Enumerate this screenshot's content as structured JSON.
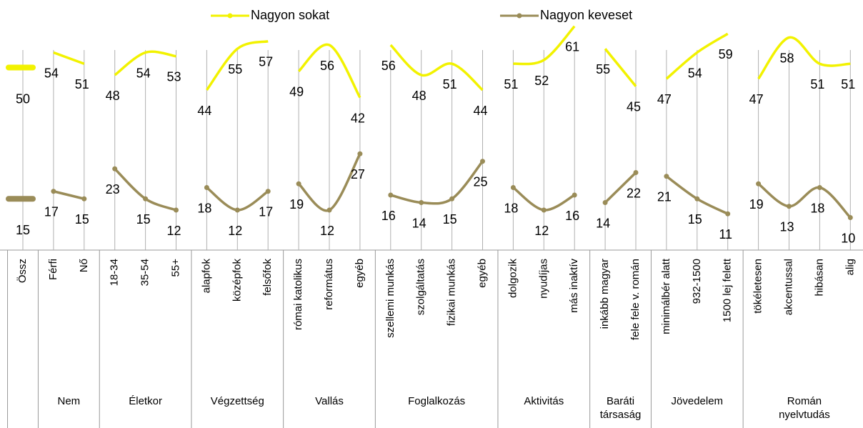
{
  "chart_data": {
    "type": "line",
    "groups": [
      {
        "label": null,
        "categories": [
          "Össz"
        ]
      },
      {
        "label": "Nem",
        "categories": [
          "Férfi",
          "Nő"
        ]
      },
      {
        "label": "Életkor",
        "categories": [
          "18-34",
          "35-54",
          "55+"
        ]
      },
      {
        "label": "Végzettség",
        "categories": [
          "alapfok",
          "középfok",
          "felsőfok"
        ]
      },
      {
        "label": "Vallás",
        "categories": [
          "római katolikus",
          "református",
          "egyéb"
        ]
      },
      {
        "label": "Foglalkozás",
        "categories": [
          "szellemi munkás",
          "szolgáltatás",
          "fizikai munkás",
          "egyéb"
        ]
      },
      {
        "label": "Aktivitás",
        "categories": [
          "dolgozik",
          "nyudíjas",
          "más inaktív"
        ]
      },
      {
        "label": "Baráti társaság",
        "categories": [
          "inkább magyar",
          "fele fele v. román"
        ]
      },
      {
        "label": "Jövedelem",
        "categories": [
          "minimálbér alatt",
          "932-1500",
          "1500 lej felett"
        ]
      },
      {
        "label": "Román nyelvtudás",
        "categories": [
          "tökéletesen",
          "akcentussal",
          "hibásan",
          "alig"
        ]
      }
    ],
    "series": [
      {
        "name": "Nagyon sokat",
        "color": "#f2f200",
        "values": [
          50,
          54,
          51,
          48,
          54,
          53,
          44,
          55,
          57,
          49,
          56,
          42,
          56,
          48,
          51,
          44,
          51,
          52,
          61,
          55,
          45,
          47,
          54,
          59,
          47,
          58,
          51,
          51
        ]
      },
      {
        "name": "Nagyon keveset",
        "color": "#9a8c58",
        "values": [
          15,
          17,
          15,
          23,
          15,
          12,
          18,
          12,
          17,
          19,
          12,
          27,
          16,
          14,
          15,
          25,
          18,
          12,
          16,
          14,
          22,
          21,
          15,
          11,
          19,
          13,
          18,
          10
        ]
      }
    ],
    "ylim": [
      0,
      68
    ]
  }
}
